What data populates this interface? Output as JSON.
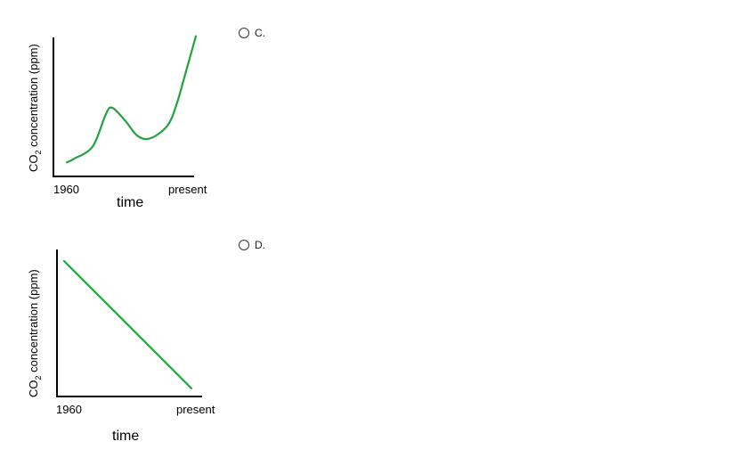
{
  "options": [
    {
      "label": "C."
    },
    {
      "label": "D."
    }
  ],
  "chart_data": [
    {
      "type": "line",
      "ylabel_main": "CO",
      "ylabel_sub": "2",
      "ylabel_rest": " concentration (ppm)",
      "xlabel": "time",
      "x_tick_labels": [
        "1960",
        "present"
      ],
      "x": [
        0.0,
        0.05,
        0.2,
        0.3,
        0.35,
        0.45,
        0.55,
        0.65,
        0.78,
        0.85,
        0.92,
        1.0
      ],
      "y": [
        0.1,
        0.13,
        0.25,
        0.55,
        0.62,
        0.5,
        0.35,
        0.33,
        0.45,
        0.65,
        0.95,
        1.3
      ],
      "color": "#22a33f"
    },
    {
      "type": "line",
      "ylabel_main": "CO",
      "ylabel_sub": "2",
      "ylabel_rest": " concentration (ppm)",
      "xlabel": "time",
      "x_tick_labels": [
        "1960",
        "present"
      ],
      "x": [
        0.0,
        1.0
      ],
      "y": [
        1.0,
        0.06
      ],
      "color": "#22a33f"
    }
  ]
}
